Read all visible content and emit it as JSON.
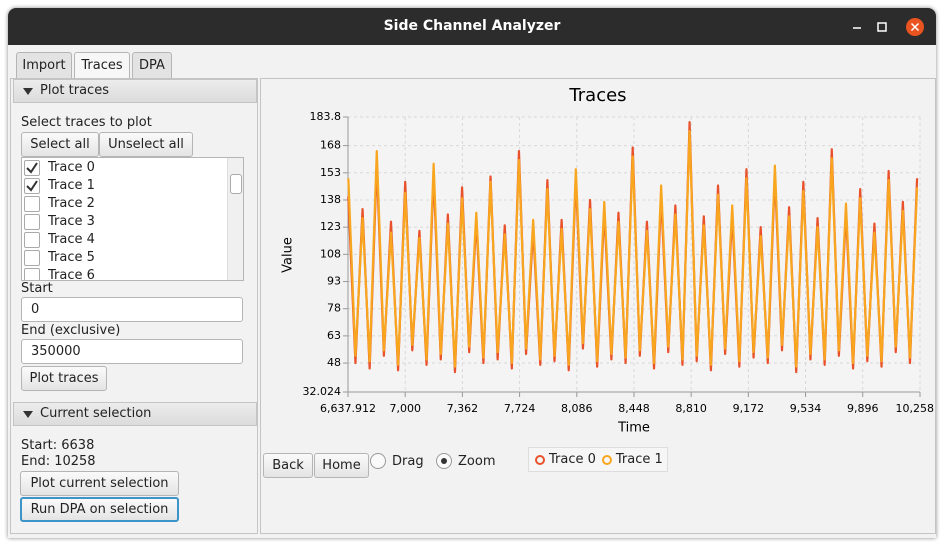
{
  "window": {
    "title": "Side Channel Analyzer"
  },
  "tabs": [
    {
      "label": "Import",
      "selected": false
    },
    {
      "label": "Traces",
      "selected": true
    },
    {
      "label": "DPA",
      "selected": false
    }
  ],
  "plot_traces": {
    "title": "Plot traces",
    "select_label": "Select traces to plot",
    "buttons": [
      "Select all",
      "Unselect all"
    ],
    "trace_list": [
      {
        "label": "Trace 0",
        "checked": true
      },
      {
        "label": "Trace 1",
        "checked": true
      },
      {
        "label": "Trace 2",
        "checked": false
      },
      {
        "label": "Trace 3",
        "checked": false
      },
      {
        "label": "Trace 4",
        "checked": false
      },
      {
        "label": "Trace 5",
        "checked": false
      },
      {
        "label": "Trace 6",
        "checked": false
      }
    ],
    "start_label": "Start",
    "start_value": "0",
    "end_label": "End (exclusive)",
    "end_value": "350000",
    "plot_button": "Plot traces"
  },
  "current_selection": {
    "title": "Current selection",
    "start": "Start: 6638",
    "end": "End: 10258",
    "buttons": [
      "Plot current selection",
      "Run DPA on selection"
    ]
  },
  "chart_controls": {
    "buttons": [
      "Back",
      "Home"
    ],
    "radios": [
      {
        "label": "Drag",
        "selected": false
      },
      {
        "label": "Zoom",
        "selected": true
      }
    ]
  },
  "chart_data": {
    "type": "line",
    "title": "Traces",
    "xlabel": "Time",
    "ylabel": "Value",
    "grid": true,
    "xlim": [
      6637.912,
      10258.5
    ],
    "xticks": [
      {
        "value": 6637.912,
        "label": "6,637.912"
      },
      {
        "value": 7000,
        "label": "7,000"
      },
      {
        "value": 7362,
        "label": "7,362"
      },
      {
        "value": 7724,
        "label": "7,724"
      },
      {
        "value": 8086,
        "label": "8,086"
      },
      {
        "value": 8448,
        "label": "8,448"
      },
      {
        "value": 8810,
        "label": "8,810"
      },
      {
        "value": 9172,
        "label": "9,172"
      },
      {
        "value": 9534,
        "label": "9,534"
      },
      {
        "value": 9896,
        "label": "9,896"
      },
      {
        "value": 10258.5,
        "label": "10,258.5"
      }
    ],
    "ylim": [
      32.024,
      183.8
    ],
    "yticks": [
      32.024,
      48,
      63,
      78,
      93,
      108,
      123,
      138,
      153,
      168,
      183.8
    ],
    "x": [
      6640,
      6685,
      6730,
      6775,
      6820,
      6865,
      6910,
      6955,
      7000,
      7045,
      7090,
      7135,
      7180,
      7225,
      7270,
      7315,
      7360,
      7405,
      7450,
      7495,
      7540,
      7585,
      7630,
      7675,
      7720,
      7765,
      7810,
      7855,
      7900,
      7945,
      7990,
      8035,
      8080,
      8125,
      8170,
      8215,
      8260,
      8305,
      8350,
      8395,
      8440,
      8485,
      8530,
      8575,
      8620,
      8665,
      8710,
      8755,
      8800,
      8845,
      8890,
      8935,
      8980,
      9025,
      9070,
      9115,
      9160,
      9205,
      9250,
      9295,
      9340,
      9385,
      9430,
      9475,
      9520,
      9565,
      9610,
      9655,
      9700,
      9745,
      9790,
      9835,
      9880,
      9925,
      9970,
      10015,
      10060,
      10105,
      10150,
      10195,
      10240
    ],
    "series": [
      {
        "name": "Trace 0",
        "color": "#e8512b",
        "values": [
          140,
          48,
          133,
          45,
          158,
          52,
          126,
          44,
          148,
          55,
          121,
          47,
          152,
          50,
          130,
          43,
          145,
          54,
          127,
          48,
          151,
          50,
          124,
          45,
          165,
          53,
          122,
          47,
          149,
          49,
          127,
          44,
          150,
          56,
          138,
          46,
          132,
          50,
          131,
          48,
          167,
          52,
          126,
          45,
          140,
          54,
          135,
          47,
          181,
          49,
          129,
          44,
          146,
          53,
          130,
          46,
          155,
          51,
          123,
          48,
          152,
          55,
          134,
          43,
          148,
          50,
          128,
          47,
          166,
          52,
          131,
          45,
          144,
          49,
          125,
          46,
          154,
          54,
          137,
          48,
          150
        ]
      },
      {
        "name": "Trace 1",
        "color": "#f8a61f",
        "values": [
          150,
          52,
          128,
          49,
          165,
          55,
          120,
          47,
          142,
          58,
          117,
          50,
          158,
          53,
          125,
          46,
          139,
          57,
          131,
          51,
          148,
          54,
          119,
          48,
          160,
          56,
          127,
          50,
          144,
          52,
          122,
          47,
          155,
          59,
          133,
          49,
          137,
          53,
          126,
          51,
          162,
          55,
          121,
          48,
          146,
          57,
          130,
          50,
          176,
          52,
          124,
          47,
          141,
          56,
          135,
          49,
          150,
          54,
          118,
          51,
          157,
          58,
          129,
          46,
          143,
          53,
          123,
          50,
          161,
          55,
          136,
          48,
          139,
          52,
          120,
          49,
          149,
          57,
          132,
          51,
          145
        ]
      }
    ]
  }
}
